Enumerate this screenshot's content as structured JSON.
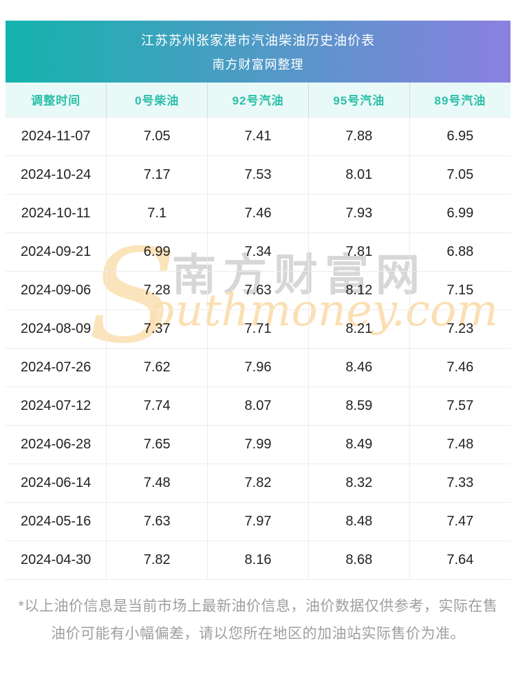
{
  "header": {
    "title": "江苏苏州张家港市汽油柴油历史油价表",
    "subtitle": "南方财富网整理"
  },
  "table": {
    "columns": [
      "调整时间",
      "0号柴油",
      "92号汽油",
      "95号汽油",
      "89号汽油"
    ],
    "rows": [
      [
        "2024-11-07",
        "7.05",
        "7.41",
        "7.88",
        "6.95"
      ],
      [
        "2024-10-24",
        "7.17",
        "7.53",
        "8.01",
        "7.05"
      ],
      [
        "2024-10-11",
        "7.1",
        "7.46",
        "7.93",
        "6.99"
      ],
      [
        "2024-09-21",
        "6.99",
        "7.34",
        "7.81",
        "6.88"
      ],
      [
        "2024-09-06",
        "7.28",
        "7.63",
        "8.12",
        "7.15"
      ],
      [
        "2024-08-09",
        "7.37",
        "7.71",
        "8.21",
        "7.23"
      ],
      [
        "2024-07-26",
        "7.62",
        "7.96",
        "8.46",
        "7.46"
      ],
      [
        "2024-07-12",
        "7.74",
        "8.07",
        "8.59",
        "7.57"
      ],
      [
        "2024-06-28",
        "7.65",
        "7.99",
        "8.49",
        "7.48"
      ],
      [
        "2024-06-14",
        "7.48",
        "7.82",
        "8.32",
        "7.33"
      ],
      [
        "2024-05-16",
        "7.63",
        "7.97",
        "8.48",
        "7.47"
      ],
      [
        "2024-04-30",
        "7.82",
        "8.16",
        "8.68",
        "7.64"
      ]
    ]
  },
  "watermark": {
    "initial": "S",
    "latin": "outhmoney.com",
    "chinese": "南方财富网"
  },
  "footnote": {
    "lines": [
      "*以上油价信息是当前市场上最新油价信息，油价数据仅供参考，实际在售",
      "油价可能有小幅偏差，请以您所在地区的加油站实际售价为准。"
    ]
  },
  "colors": {
    "gradient_start": "#14b4ac",
    "gradient_end": "#8b80e0",
    "title_text": "#ffffff",
    "column_header_bg": "#e9f9f7",
    "column_header_text": "#2bbfa9",
    "body_text": "#222222",
    "row_border": "#ececec",
    "footnote_text": "#9e9e9e",
    "watermark_gray": "#d7d7d7",
    "watermark_peach": "#fbdfb2"
  }
}
